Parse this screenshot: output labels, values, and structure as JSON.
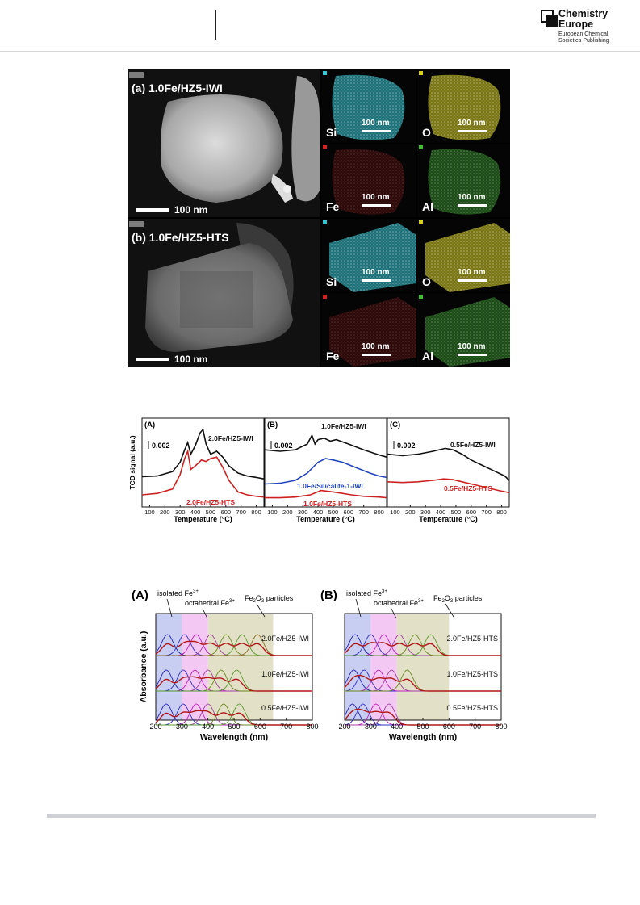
{
  "header": {
    "logo": {
      "line1": "Chemistry",
      "line2": "Europe",
      "line3": "European Chemical",
      "line4": "Societies Publishing"
    }
  },
  "tem_figure": {
    "panels": [
      {
        "label": "(a) 1.0Fe/HZ5-IWI",
        "main_scale": "100 nm",
        "tag": "HAADF",
        "maps": [
          {
            "element": "Si",
            "scale": "100 nm",
            "color": "#2fc8d6"
          },
          {
            "element": "O",
            "scale": "100 nm",
            "color": "#d8d21e"
          },
          {
            "element": "Fe",
            "scale": "100 nm",
            "color": "#d82020"
          },
          {
            "element": "Al",
            "scale": "100 nm",
            "color": "#3fbf2f"
          }
        ]
      },
      {
        "label": "(b) 1.0Fe/HZ5-HTS",
        "main_scale": "100 nm",
        "tag": "HAADF",
        "maps": [
          {
            "element": "Si",
            "scale": "100 nm",
            "color": "#2fc8d6"
          },
          {
            "element": "O",
            "scale": "100 nm",
            "color": "#d8d21e"
          },
          {
            "element": "Fe",
            "scale": "100 nm",
            "color": "#d82020"
          },
          {
            "element": "Al",
            "scale": "100 nm",
            "color": "#3fbf2f"
          }
        ]
      }
    ]
  },
  "chart_data": [
    {
      "type": "line",
      "panel": "(A)",
      "ylabel": "TCD signal (a.u.)",
      "xlabel": "Temperature (°C)",
      "x_ticks": [
        100,
        200,
        300,
        400,
        500,
        600,
        700,
        800
      ],
      "xlim": [
        50,
        850
      ],
      "scale_bar": "0.002",
      "series": [
        {
          "name": "2.0Fe/HZ5-IWI",
          "color": "#111111",
          "x": [
            50,
            150,
            250,
            300,
            330,
            350,
            370,
            400,
            430,
            450,
            470,
            500,
            540,
            580,
            620,
            680,
            740,
            800,
            850
          ],
          "y": [
            0.35,
            0.36,
            0.42,
            0.55,
            0.72,
            0.82,
            0.66,
            0.78,
            0.95,
            1.0,
            0.8,
            0.66,
            0.7,
            0.62,
            0.5,
            0.4,
            0.36,
            0.34,
            0.32
          ]
        },
        {
          "name": "2.0Fe/HZ5-HTS",
          "color": "#cc2222",
          "x": [
            50,
            150,
            250,
            300,
            330,
            350,
            370,
            400,
            440,
            470,
            500,
            540,
            580,
            620,
            680,
            740,
            800,
            850
          ],
          "y": [
            0.1,
            0.12,
            0.18,
            0.38,
            0.6,
            0.7,
            0.45,
            0.5,
            0.58,
            0.56,
            0.6,
            0.62,
            0.48,
            0.3,
            0.14,
            0.1,
            0.08,
            0.07
          ]
        }
      ]
    },
    {
      "type": "line",
      "panel": "(B)",
      "xlabel": "Temperature (°C)",
      "x_ticks": [
        100,
        200,
        300,
        400,
        500,
        600,
        700,
        800
      ],
      "xlim": [
        50,
        850
      ],
      "scale_bar": "0.002",
      "series": [
        {
          "name": "1.0Fe/HZ5-IWI",
          "color": "#111111",
          "x": [
            50,
            150,
            250,
            330,
            360,
            380,
            400,
            440,
            480,
            520,
            600,
            700,
            800,
            850
          ],
          "y": [
            0.72,
            0.7,
            0.72,
            0.8,
            0.92,
            0.8,
            0.86,
            0.88,
            0.84,
            0.86,
            0.8,
            0.72,
            0.65,
            0.62
          ]
        },
        {
          "name": "1.0Fe/Silicalite-1-IWI",
          "color": "#2244bb",
          "x": [
            50,
            150,
            250,
            330,
            400,
            450,
            500,
            560,
            620,
            680,
            740,
            800,
            850
          ],
          "y": [
            0.25,
            0.26,
            0.3,
            0.4,
            0.55,
            0.6,
            0.58,
            0.55,
            0.5,
            0.45,
            0.4,
            0.36,
            0.34
          ]
        },
        {
          "name": "1.0Fe/HZ5-HTS",
          "color": "#cc2222",
          "x": [
            50,
            150,
            250,
            350,
            420,
            500,
            560,
            620,
            700,
            800,
            850
          ],
          "y": [
            0.06,
            0.06,
            0.07,
            0.1,
            0.16,
            0.14,
            0.12,
            0.1,
            0.08,
            0.07,
            0.06
          ]
        }
      ]
    },
    {
      "type": "line",
      "panel": "(C)",
      "xlabel": "Temperature (°C)",
      "x_ticks": [
        100,
        200,
        300,
        400,
        500,
        600,
        700,
        800
      ],
      "xlim": [
        50,
        850
      ],
      "scale_bar": "0.002",
      "series": [
        {
          "name": "0.5Fe/HZ5-IWI",
          "color": "#111111",
          "x": [
            50,
            150,
            250,
            350,
            430,
            480,
            540,
            600,
            680,
            760,
            820,
            850
          ],
          "y": [
            0.66,
            0.64,
            0.66,
            0.7,
            0.74,
            0.72,
            0.66,
            0.58,
            0.5,
            0.42,
            0.36,
            0.3
          ]
        },
        {
          "name": "0.5Fe/HZ5-HTS",
          "color": "#cc2222",
          "x": [
            50,
            150,
            250,
            350,
            420,
            480,
            540,
            620,
            700,
            780,
            850
          ],
          "y": [
            0.28,
            0.27,
            0.28,
            0.3,
            0.32,
            0.31,
            0.28,
            0.24,
            0.2,
            0.16,
            0.13
          ]
        }
      ]
    },
    {
      "type": "line",
      "panel": "(A)",
      "ylabel": "Absorbance (a.u.)",
      "xlabel": "Wavelength (nm)",
      "x_ticks": [
        200,
        300,
        400,
        500,
        600,
        700,
        800
      ],
      "xlim": [
        200,
        800
      ],
      "regions": [
        {
          "label": "isolated Fe3+",
          "from": 200,
          "to": 300,
          "color": "#c8cdf2"
        },
        {
          "label": "octahedral Fe3+",
          "from": 300,
          "to": 400,
          "color": "#f3c8f2"
        },
        {
          "label": "Fe2O3 particles",
          "from": 400,
          "to": 650,
          "color": "#e3e0c8"
        }
      ],
      "series": [
        {
          "name": "2.0Fe/HZ5-IWI",
          "peaks": [
            245,
            310,
            355,
            410,
            470,
            530,
            590
          ]
        },
        {
          "name": "1.0Fe/HZ5-IWI",
          "peaks": [
            240,
            305,
            350,
            400,
            450,
            510
          ]
        },
        {
          "name": "0.5Fe/HZ5-IWI",
          "peaks": [
            240,
            305,
            355,
            400,
            460,
            520
          ]
        }
      ]
    },
    {
      "type": "line",
      "panel": "(B)",
      "xlabel": "Wavelength (nm)",
      "x_ticks": [
        200,
        300,
        400,
        500,
        600,
        700,
        800
      ],
      "xlim": [
        200,
        800
      ],
      "regions": [
        {
          "label": "isolated Fe3+",
          "from": 200,
          "to": 300,
          "color": "#c8cdf2"
        },
        {
          "label": "octahedral Fe3+",
          "from": 300,
          "to": 400,
          "color": "#f3c8f2"
        },
        {
          "label": "Fe2O3 particles",
          "from": 400,
          "to": 600,
          "color": "#e3e0c8"
        }
      ],
      "series": [
        {
          "name": "2.0Fe/HZ5-HTS",
          "peaks": [
            240,
            300,
            350,
            410,
            470,
            530
          ]
        },
        {
          "name": "1.0Fe/HZ5-HTS",
          "peaks": [
            235,
            275,
            330,
            380,
            440
          ]
        },
        {
          "name": "0.5Fe/HZ5-HTS",
          "peaks": [
            230,
            270,
            320,
            370
          ]
        }
      ]
    }
  ],
  "uv_labels": {
    "isolated": "isolated Fe",
    "octahedral": "octahedral Fe",
    "fe2o3_pre": "Fe",
    "fe2o3_sub": "2",
    "fe2o3_mid": "O",
    "fe2o3_sub2": "3",
    "fe2o3_post": " particles",
    "sup": "3+"
  }
}
